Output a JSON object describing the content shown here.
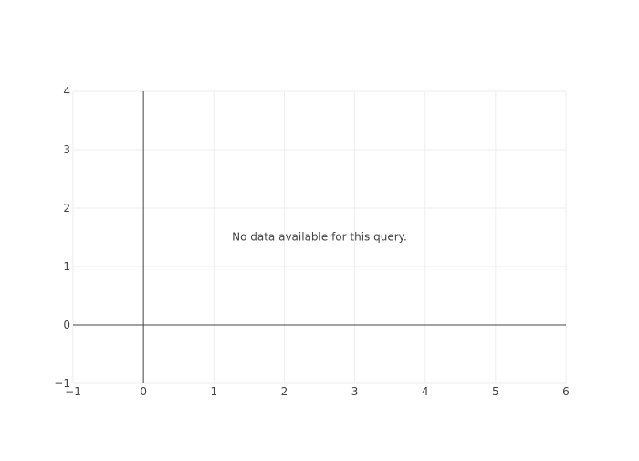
{
  "chart_data": {
    "type": "scatter",
    "title": "",
    "xlabel": "",
    "ylabel": "",
    "xlim": [
      -1,
      6
    ],
    "ylim": [
      -1,
      4
    ],
    "x_ticks": [
      -1,
      0,
      1,
      2,
      3,
      4,
      5,
      6
    ],
    "y_ticks": [
      -1,
      0,
      1,
      2,
      3,
      4
    ],
    "x_tick_labels": [
      "−1",
      "0",
      "1",
      "2",
      "3",
      "4",
      "5",
      "6"
    ],
    "y_tick_labels": [
      "−1",
      "0",
      "1",
      "2",
      "3",
      "4"
    ],
    "grid": true,
    "series": [],
    "annotation": {
      "text": "No data available for this query.",
      "x": 2.5,
      "y": 1.5
    }
  },
  "colors": {
    "background": "#ffffff",
    "grid": "#eeeeee",
    "zero_line": "#444444",
    "text": "#444444"
  }
}
